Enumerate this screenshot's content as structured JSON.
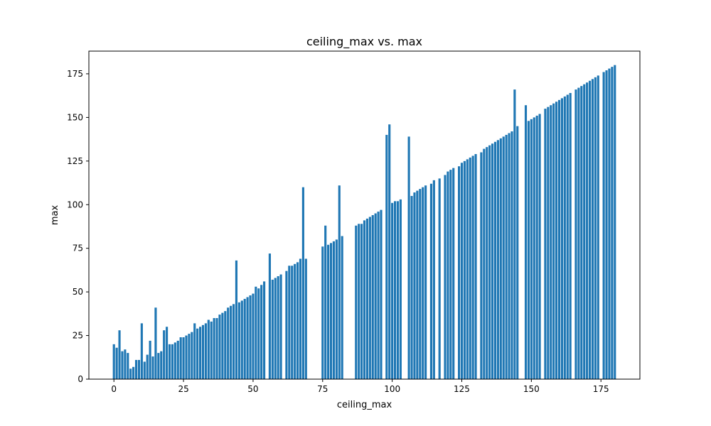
{
  "chart_data": {
    "type": "bar",
    "title": "ceiling_max vs. max",
    "xlabel": "ceiling_max",
    "ylabel": "max",
    "xlim": [
      -9,
      189
    ],
    "ylim": [
      0,
      188
    ],
    "x_ticks": [
      0,
      25,
      50,
      75,
      100,
      125,
      150,
      175
    ],
    "y_ticks": [
      0,
      25,
      50,
      75,
      100,
      125,
      150,
      175
    ],
    "grid": false,
    "bar_width": 0.8,
    "color": "#1f77b4",
    "series": [
      {
        "x": [
          0,
          1,
          2,
          3,
          4,
          5,
          6,
          7,
          8,
          9,
          10,
          11,
          12,
          13,
          14,
          15,
          16,
          17,
          18,
          19,
          20,
          21,
          22,
          23,
          24,
          25,
          26,
          27,
          28,
          29,
          30,
          31,
          32,
          33,
          34,
          35,
          36,
          37,
          38,
          39,
          40,
          41,
          42,
          43,
          44,
          45,
          46,
          47,
          48,
          49,
          50,
          51,
          52,
          53,
          54,
          56,
          57,
          58,
          59,
          60,
          62,
          63,
          64,
          65,
          66,
          67,
          68,
          69,
          75,
          76,
          77,
          78,
          79,
          80,
          81,
          82,
          87,
          88,
          89,
          90,
          91,
          92,
          93,
          94,
          95,
          96,
          98,
          99,
          100,
          101,
          102,
          103,
          106,
          107,
          108,
          109,
          110,
          111,
          112,
          114,
          115,
          117,
          119,
          120,
          121,
          122,
          124,
          125,
          126,
          127,
          128,
          129,
          130,
          132,
          133,
          134,
          135,
          136,
          137,
          138,
          139,
          140,
          141,
          142,
          143,
          144,
          145,
          148,
          149,
          150,
          151,
          152,
          153,
          155,
          156,
          157,
          158,
          159,
          160,
          161,
          162,
          163,
          164,
          166,
          167,
          168,
          169,
          170,
          171,
          172,
          173,
          174,
          176,
          177,
          178,
          179,
          180
        ],
        "values": [
          20,
          18,
          28,
          16,
          17,
          15,
          6,
          7,
          11,
          11,
          32,
          10,
          14,
          22,
          13,
          41,
          15,
          16,
          28,
          30,
          20,
          20,
          21,
          22,
          24,
          24,
          25,
          26,
          27,
          32,
          29,
          30,
          31,
          32,
          34,
          33,
          35,
          35,
          37,
          38,
          39,
          41,
          42,
          43,
          68,
          44,
          45,
          46,
          47,
          48,
          49,
          53,
          52,
          54,
          56,
          72,
          57,
          58,
          59,
          60,
          62,
          65,
          65,
          66,
          67,
          69,
          110,
          69,
          76,
          88,
          77,
          78,
          79,
          80,
          111,
          82,
          88,
          89,
          89,
          91,
          92,
          93,
          94,
          95,
          96,
          97,
          140,
          146,
          101,
          102,
          102,
          103,
          139,
          105,
          107,
          108,
          109,
          110,
          111,
          112,
          114,
          115,
          117,
          119,
          120,
          121,
          122,
          124,
          125,
          126,
          127,
          128,
          129,
          130,
          132,
          133,
          134,
          135,
          136,
          137,
          138,
          139,
          140,
          141,
          142,
          166,
          145,
          157,
          148,
          149,
          150,
          151,
          152,
          155,
          156,
          157,
          158,
          159,
          160,
          161,
          162,
          163,
          164,
          166,
          167,
          168,
          169,
          170,
          171,
          172,
          173,
          174,
          176,
          177,
          178,
          179,
          180
        ]
      }
    ]
  }
}
